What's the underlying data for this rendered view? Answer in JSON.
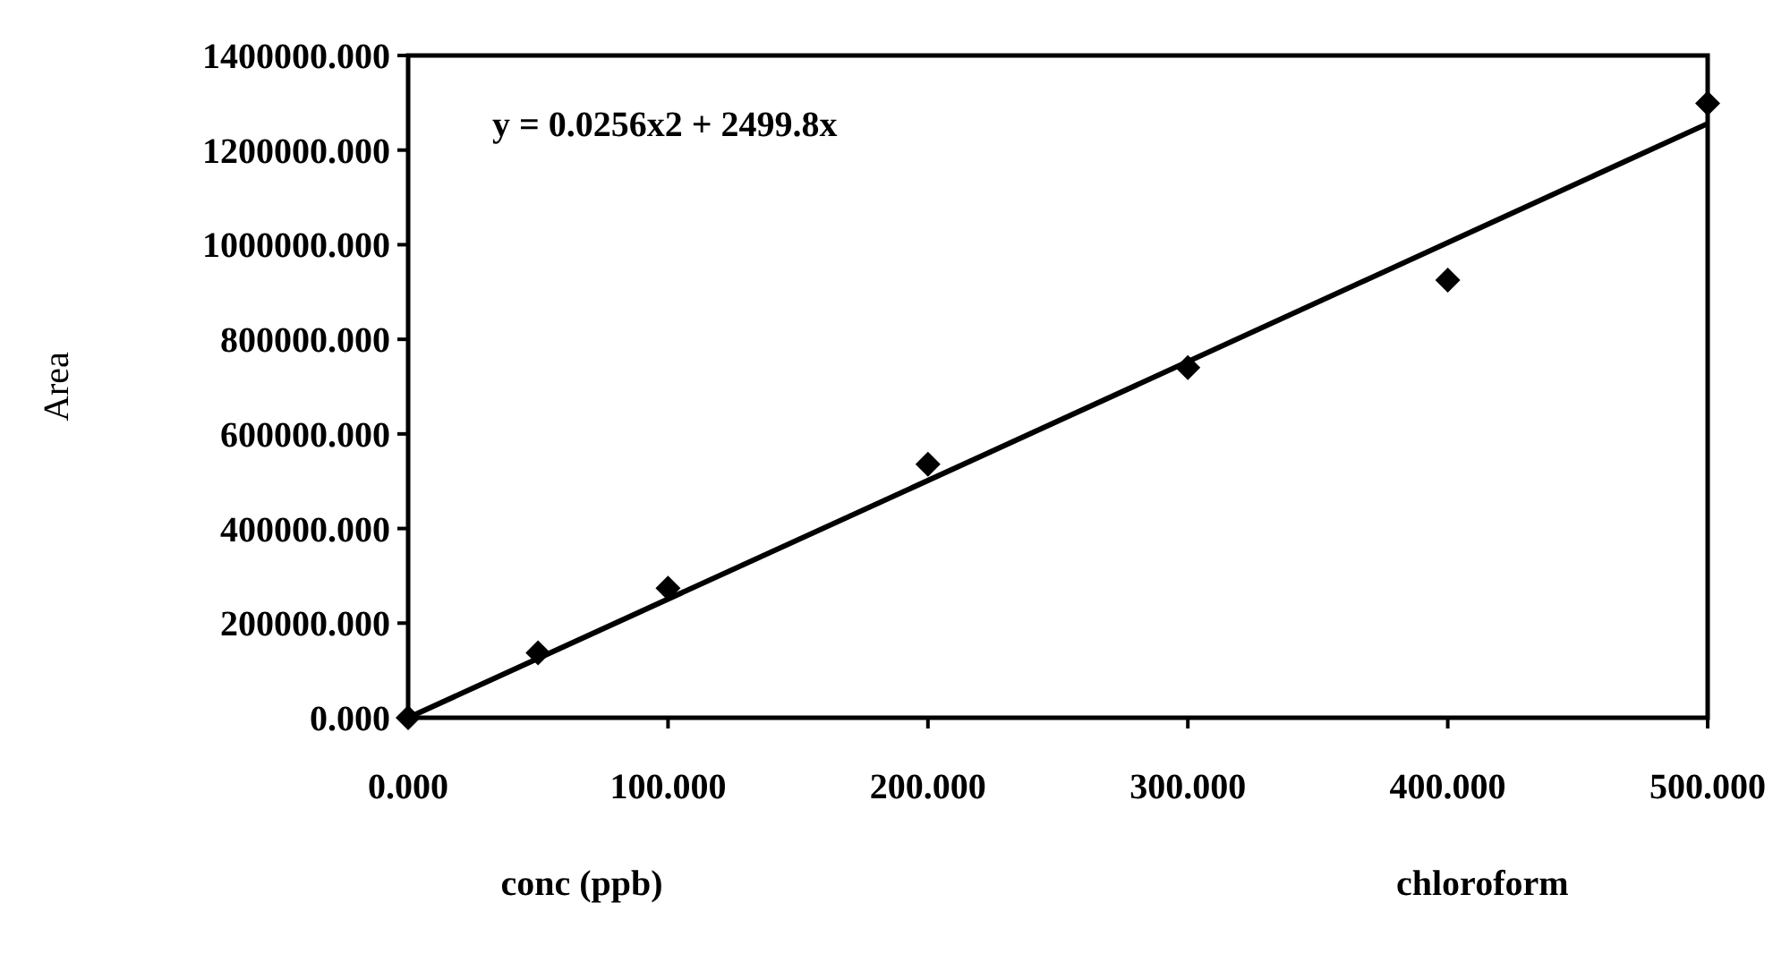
{
  "chart_data": {
    "type": "scatter",
    "xlabel": "conc (ppb)",
    "ylabel": "Area",
    "marker": "diamond",
    "grid": false,
    "xlim": [
      0,
      500
    ],
    "ylim": [
      0,
      1400000
    ],
    "xticks": [
      {
        "value": 0,
        "label": "0.000"
      },
      {
        "value": 100,
        "label": "100.000"
      },
      {
        "value": 200,
        "label": "200.000"
      },
      {
        "value": 300,
        "label": "300.000"
      },
      {
        "value": 400,
        "label": "400.000"
      },
      {
        "value": 500,
        "label": "500.000"
      }
    ],
    "yticks": [
      {
        "value": 0,
        "label": "0.000"
      },
      {
        "value": 200000,
        "label": "200000.000"
      },
      {
        "value": 400000,
        "label": "400000.000"
      },
      {
        "value": 600000,
        "label": "600000.000"
      },
      {
        "value": 800000,
        "label": "800000.000"
      },
      {
        "value": 1000000,
        "label": "1000000.000"
      },
      {
        "value": 1200000,
        "label": "1200000.000"
      },
      {
        "value": 1400000,
        "label": "1400000.000"
      }
    ],
    "series": [
      {
        "color": "#000000",
        "x": [
          0,
          50,
          100,
          200,
          300,
          400,
          500
        ],
        "values": [
          0,
          137000,
          274000,
          536000,
          740000,
          925000,
          1299000
        ]
      },
      {
        "type": "line",
        "color": "#000000",
        "marker": "none",
        "x": [
          0,
          250,
          500
        ],
        "values": [
          0,
          627000,
          1256000
        ]
      }
    ],
    "annotations": [
      "y = 0.0256x2 + 2499.8x",
      "chloroform"
    ]
  }
}
